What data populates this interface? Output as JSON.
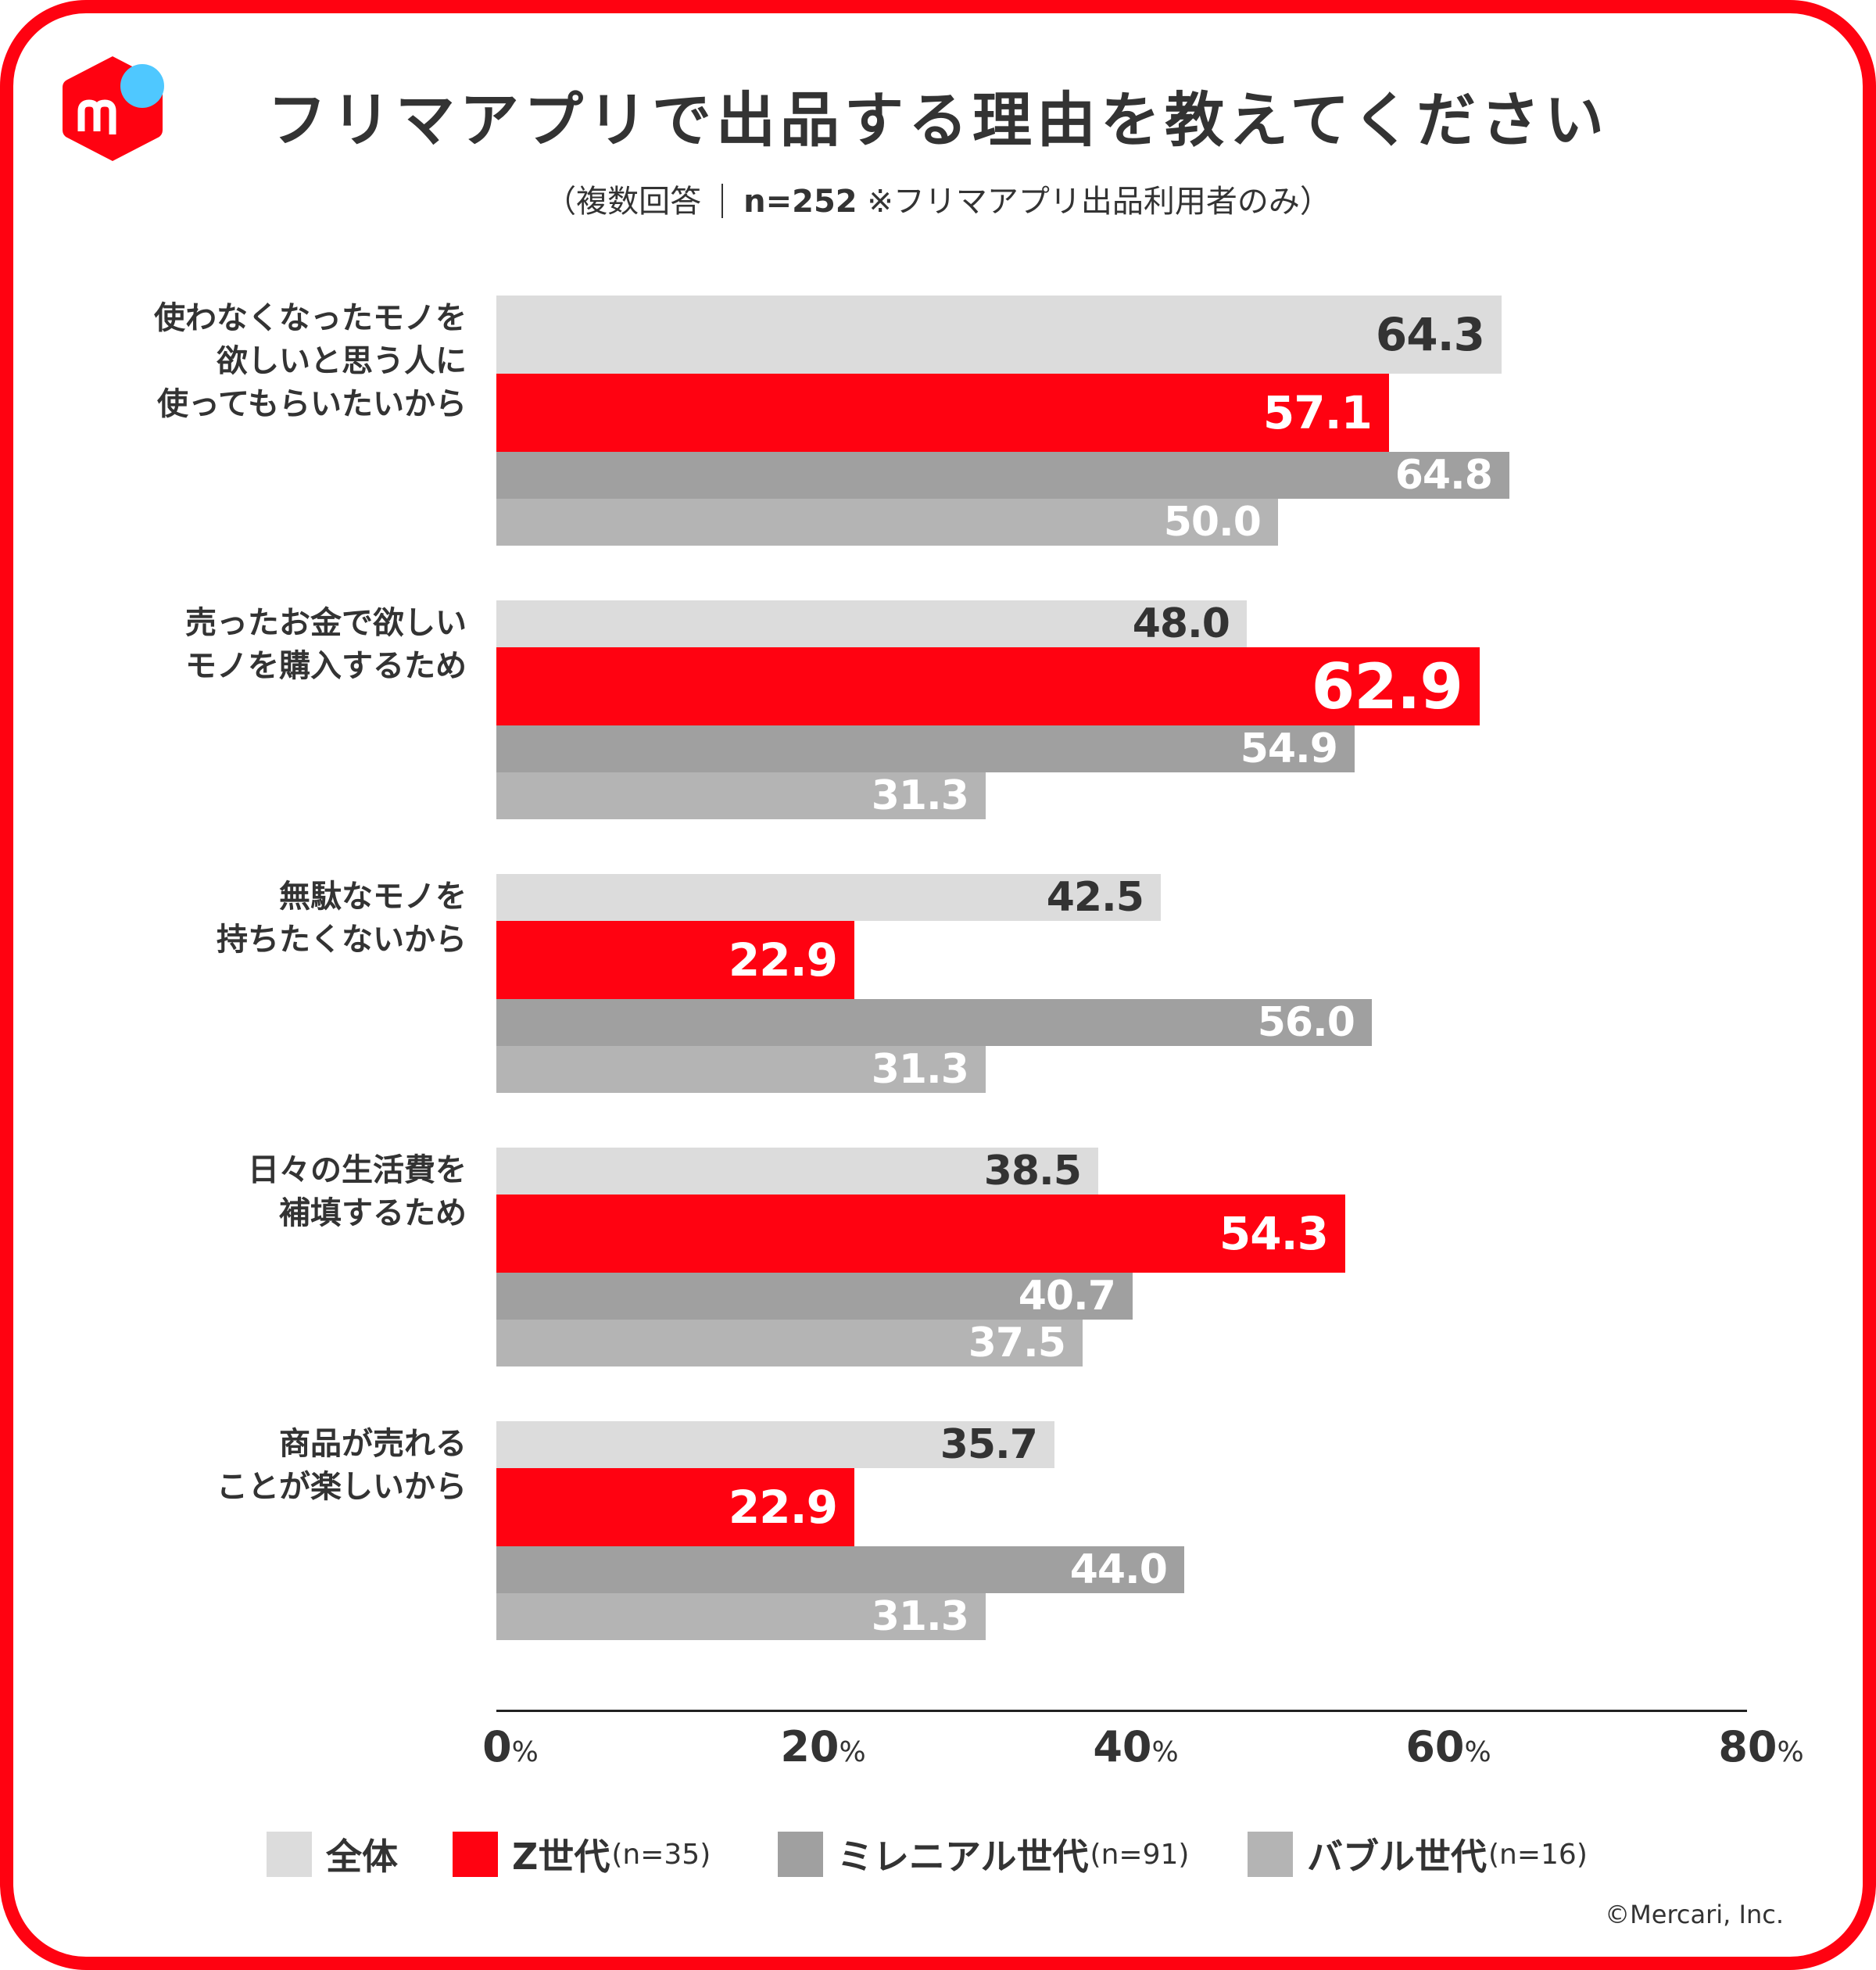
{
  "header": {
    "title": "フリマアプリで出品する理由を教えてください",
    "subtitle_prefix": "（複数回答",
    "subtitle_n": "n=252",
    "subtitle_note": " ※フリマアプリ出品利用者のみ）",
    "logo": "mercari-logo-icon"
  },
  "colors": {
    "frame": "#ff0211",
    "zenntai": "#dcdcdc",
    "z_gen": "#ff0211",
    "millennial": "#a0a0a0",
    "bubble": "#b4b4b4",
    "logo_dot": "#4fc8ff",
    "text": "#333333"
  },
  "chart_data": {
    "type": "bar",
    "orientation": "horizontal",
    "title": "フリマアプリで出品する理由を教えてください",
    "subtitle": "（複数回答 ｜ n=252 ※フリマアプリ出品利用者のみ）",
    "categories": [
      "使わなくなったモノを\n欲しいと思う人に\n使ってもらいたいから",
      "売ったお金で欲しい\nモノを購入するため",
      "無駄なモノを\n持ちたくないから",
      "日々の生活費を\n補填するため",
      "商品が売れる\nことが楽しいから"
    ],
    "series": [
      {
        "name": "全体",
        "n_label": "",
        "values": [
          64.3,
          48.0,
          42.5,
          38.5,
          35.7
        ]
      },
      {
        "name": "Z世代",
        "n_label": "(n=35)",
        "values": [
          57.1,
          62.9,
          22.9,
          54.3,
          22.9
        ]
      },
      {
        "name": "ミレニアル世代",
        "n_label": "(n=91)",
        "values": [
          64.8,
          54.9,
          56.0,
          40.7,
          44.0
        ]
      },
      {
        "name": "バブル世代",
        "n_label": "(n=16)",
        "values": [
          50.0,
          31.3,
          31.3,
          37.5,
          31.3
        ]
      }
    ],
    "xlim": [
      0,
      80
    ],
    "x_ticks": [
      0,
      20,
      40,
      60,
      80
    ],
    "tick_suffix": "%",
    "xlabel": "",
    "ylabel": "",
    "grid": false,
    "legend_position": "bottom",
    "highlight": {
      "series": "Z世代",
      "category_index": 1
    }
  },
  "footer": {
    "copyright": "©Mercari, Inc."
  }
}
